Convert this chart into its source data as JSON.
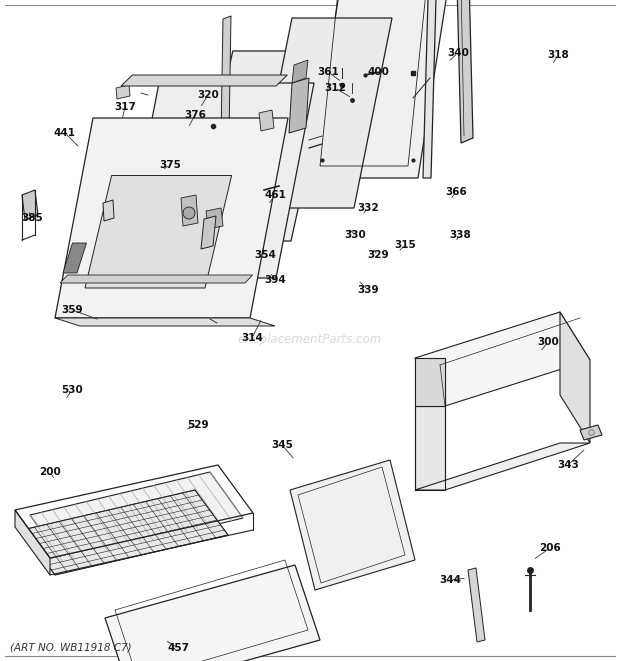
{
  "background_color": "#ffffff",
  "art_no": "(ART NO. WB11918 C7)",
  "watermark": "eReplacementParts.com",
  "fig_width": 6.2,
  "fig_height": 6.61,
  "dpi": 100
}
